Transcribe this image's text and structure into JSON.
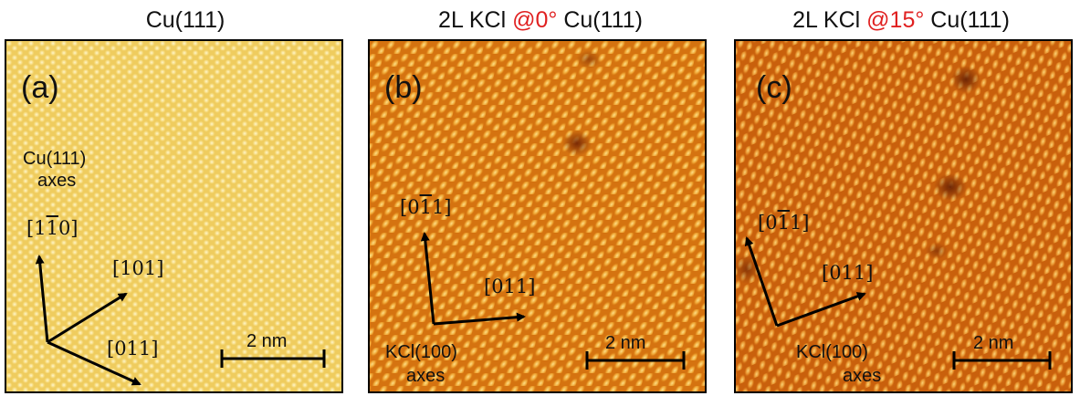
{
  "titles": {
    "a": "Cu(111)",
    "b_pre": "2L KCl ",
    "b_accent": "@0°",
    "b_post": " Cu(111)",
    "c_pre": "2L KCl ",
    "c_accent": "@15°",
    "c_post": " Cu(111)",
    "accent_color": "#e02020"
  },
  "panels": {
    "a": {
      "label": "(a)",
      "axes_line1": "Cu(111)",
      "axes_line2": "axes",
      "dir1": {
        "pre": "[1",
        "bar": "1",
        "post": "0]"
      },
      "dir2": "[101]",
      "dir3": "[011]",
      "scale": "2 nm",
      "colors": {
        "base": "#f2d36a",
        "spot": "#fbeaa8"
      }
    },
    "b": {
      "label": "(b)",
      "axes_line1": "KCl(100)",
      "axes_line2": "axes",
      "dir1": {
        "pre": "[0",
        "bar": "1",
        "post": "1]"
      },
      "dir2": "[011]",
      "scale": "2 nm",
      "colors": {
        "base": "#d9780f",
        "spot": "#f7c64e"
      }
    },
    "c": {
      "label": "(c)",
      "axes_line1": "KCl(100)",
      "axes_line2": "axes",
      "dir1": {
        "pre": "[0",
        "bar": "1",
        "post": "1]"
      },
      "dir2": "[011]",
      "scale": "2 nm",
      "colors": {
        "base": "#cf650d",
        "spot": "#f3b347"
      }
    }
  }
}
